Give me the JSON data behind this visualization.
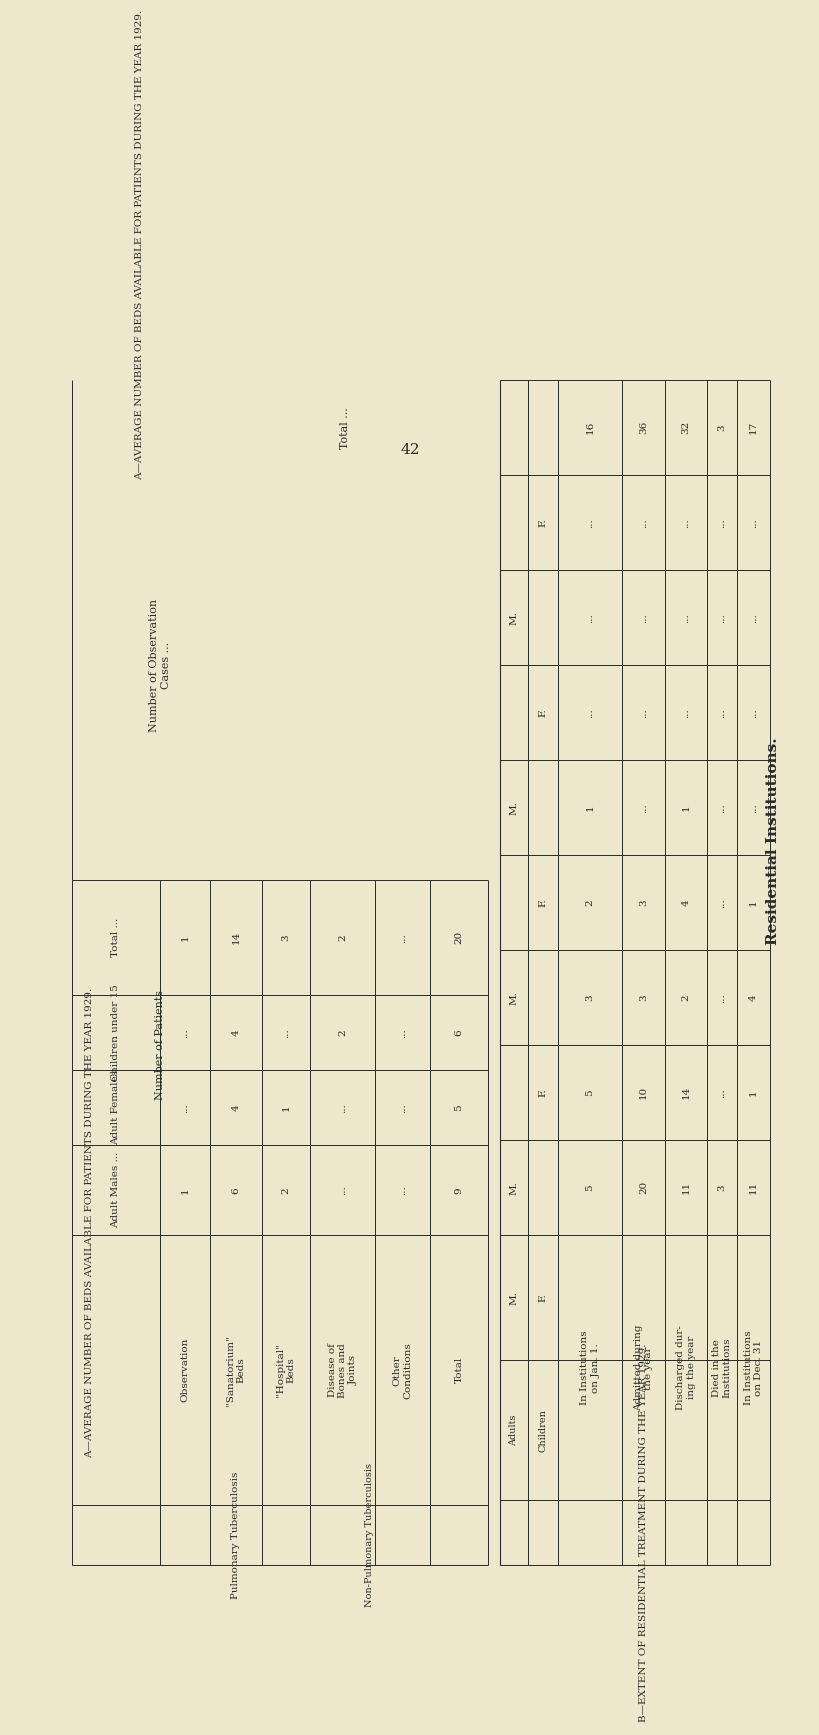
{
  "page_number": "42",
  "main_title": "Residential Institutions.",
  "section_a_title": "A—AVERAGE NUMBER OF BEDS AVAILABLE FOR PATIENTS DURING THE YEAR 1929.",
  "section_b_title": "B—EXTENT OF RESIDENTIAL TREATMENT DURING THE YEAR 1929.",
  "bg_color": "#ede8cc",
  "line_color": "#2a2a2a",
  "section_a": {
    "row_labels": [
      "Adult Males ...",
      "Adult Females",
      "Children under 15",
      "Total ..."
    ],
    "observation": [
      "1",
      "...",
      "...",
      "1"
    ],
    "sanatorium_beds": [
      "6",
      "4",
      "4",
      "14"
    ],
    "hospital_beds": [
      "2",
      "1",
      "...",
      "3"
    ],
    "disease_bones": [
      "...",
      "...",
      "2",
      "2"
    ],
    "other_conditions": [
      "...",
      "...",
      "...",
      "..."
    ],
    "total": [
      "9",
      "5",
      "6",
      "20"
    ]
  },
  "section_b_col_headers": [
    "In Institutions\non Jan. 1.",
    "Admitted during\nthe year",
    "Discharged dur-\ning the year",
    "Died in the\nInstitutions",
    "In Institutions\non Dec. 31"
  ],
  "section_b_groups": [
    {
      "label": "Number of Patients",
      "rows": [
        [
          "M.",
          "Adults",
          "5",
          "20",
          "11",
          "3",
          "11"
        ],
        [
          "F.",
          "Children",
          "5",
          "10",
          "14",
          "...",
          "1"
        ],
        [
          "M.",
          "Adults",
          "3",
          "3",
          "2",
          "...",
          "4"
        ],
        [
          "F.",
          "Children",
          "2",
          "3",
          "4",
          "...",
          "1"
        ]
      ]
    },
    {
      "label": "Number of Observation\nCases ...",
      "rows": [
        [
          "M.",
          "Adults",
          "1",
          "...",
          "1",
          "...",
          "..."
        ],
        [
          "F.",
          "Children",
          "...",
          "...",
          "...",
          "...",
          "..."
        ],
        [
          "M.",
          "Adults",
          "...",
          "...",
          "...",
          "...",
          "..."
        ],
        [
          "F.",
          "Children",
          "...",
          "...",
          "...",
          "...",
          "..."
        ]
      ]
    }
  ],
  "section_b_total": [
    "16",
    "36",
    "32",
    "3",
    "17"
  ]
}
